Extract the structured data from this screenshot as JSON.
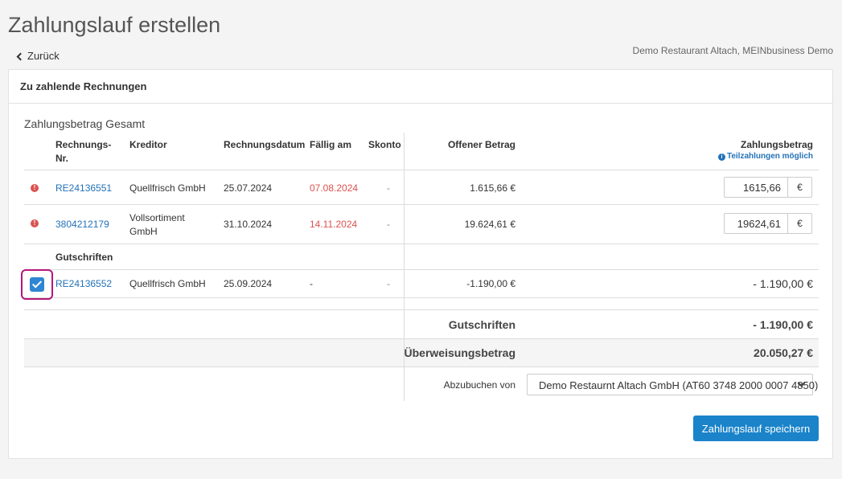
{
  "page": {
    "title": "Zahlungslauf erstellen",
    "back_label": "Zurück",
    "company": "Demo Restaurant Altach, MEINbusiness Demo"
  },
  "card": {
    "header": "Zu zahlende Rechnungen",
    "section_title": "Zahlungsbetrag Gesamt"
  },
  "table": {
    "headers": {
      "number": "Rechnungs-Nr.",
      "creditor": "Kreditor",
      "invoice_date": "Rechnungsdatum",
      "due": "Fällig am",
      "discount": "Skonto",
      "open_amount": "Offener Betrag",
      "payment_amount": "Zahlungsbetrag",
      "partial_note": "Teilzahlungen möglich"
    },
    "invoices": [
      {
        "number": "RE24136551",
        "creditor": "Quellfrisch GmbH",
        "invoice_date": "25.07.2024",
        "due": "07.08.2024",
        "discount": "-",
        "open_amount": "1.615,66 €",
        "payment_value": "1615,66",
        "currency": "€"
      },
      {
        "number": "3804212179",
        "creditor": "Vollsortiment GmbH",
        "invoice_date": "31.10.2024",
        "due": "14.11.2024",
        "discount": "-",
        "open_amount": "19.624,61 €",
        "payment_value": "19624,61",
        "currency": "€"
      }
    ],
    "credits_label": "Gutschriften",
    "credits": [
      {
        "number": "RE24136552",
        "creditor": "Quellfrisch GmbH",
        "invoice_date": "25.09.2024",
        "due": "-",
        "discount": "-",
        "open_amount": "-1.190,00 €",
        "payment_amount": "- 1.190,00 €",
        "checked": true
      }
    ]
  },
  "totals": {
    "credits_label": "Gutschriften",
    "credits_value": "- 1.190,00 €",
    "transfer_label": "Überweisungsbetrag",
    "transfer_value": "20.050,27 €"
  },
  "debit": {
    "label": "Abzubuchen von",
    "selected": "Demo Restaurnt Altach GmbH (AT60 3748 2000 0007 4850)"
  },
  "save_label": "Zahlungslauf speichern",
  "colors": {
    "link": "#2372b8",
    "overdue": "#d9534f",
    "primary_button": "#1a83c9",
    "highlight_border": "#b5177a"
  }
}
